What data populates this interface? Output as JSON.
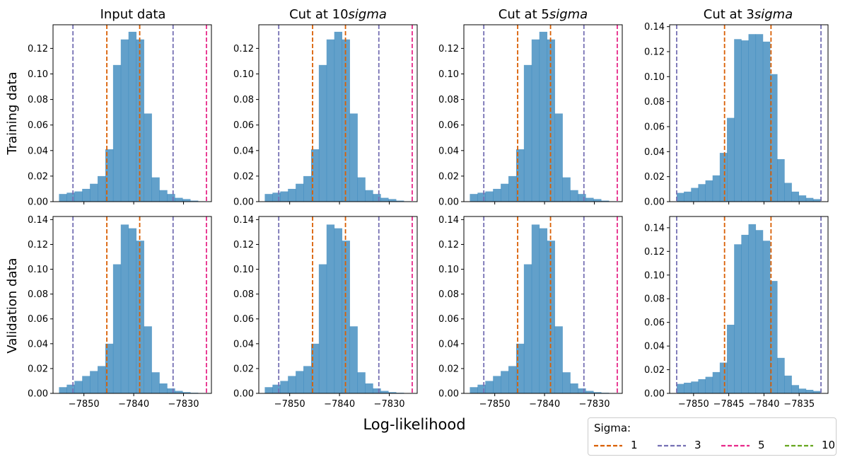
{
  "figure": {
    "xlabel": "Log-likelihood",
    "row_labels": [
      "Training data",
      "Validation data"
    ],
    "col_titles": [
      {
        "main": "Input data",
        "italic": ""
      },
      {
        "main": "Cut at 10",
        "italic": "sigma"
      },
      {
        "main": "Cut at 5",
        "italic": "sigma"
      },
      {
        "main": "Cut at 3",
        "italic": "sigma"
      }
    ]
  },
  "legend": {
    "title": "Sigma:",
    "items": [
      {
        "label": "1",
        "color": "#d95f02"
      },
      {
        "label": "3",
        "color": "#7570b3"
      },
      {
        "label": "5",
        "color": "#e7298a"
      },
      {
        "label": "10",
        "color": "#66a61e"
      }
    ]
  },
  "colors": {
    "bar": "#1f77b4",
    "bar_opacity": 0.7
  },
  "chart_data": [
    {
      "type": "bar",
      "title": "Input data",
      "ylabel": "Training data",
      "xlabel": "",
      "xlim": [
        -7856.2,
        -7824.4
      ],
      "ylim": [
        0,
        0.1385
      ],
      "xticks": [
        -7850,
        -7840,
        -7830
      ],
      "yticks": [
        0.0,
        0.02,
        0.04,
        0.06,
        0.08,
        0.1,
        0.12
      ],
      "bins_start": -7855.0,
      "bin_width": 1.55,
      "values": [
        0.006,
        0.007,
        0.008,
        0.01,
        0.014,
        0.02,
        0.041,
        0.107,
        0.127,
        0.133,
        0.127,
        0.069,
        0.019,
        0.009,
        0.006,
        0.003,
        0.002,
        0.0008,
        0.0003
      ],
      "vlines": [
        {
          "sigma": "1",
          "x": -7845.4
        },
        {
          "sigma": "1",
          "x": -7838.8
        },
        {
          "sigma": "3",
          "x": -7852.2
        },
        {
          "sigma": "3",
          "x": -7832.1
        },
        {
          "sigma": "5",
          "x": -7825.4
        }
      ]
    },
    {
      "type": "bar",
      "title": "Cut at 10sigma",
      "ylabel": "",
      "xlabel": "",
      "xlim": [
        -7856.2,
        -7824.4
      ],
      "ylim": [
        0,
        0.1385
      ],
      "xticks": [
        -7850,
        -7840,
        -7830
      ],
      "yticks": [
        0.0,
        0.02,
        0.04,
        0.06,
        0.08,
        0.1,
        0.12
      ],
      "bins_start": -7855.0,
      "bin_width": 1.55,
      "values": [
        0.006,
        0.007,
        0.008,
        0.01,
        0.014,
        0.02,
        0.041,
        0.107,
        0.127,
        0.133,
        0.127,
        0.069,
        0.019,
        0.009,
        0.006,
        0.003,
        0.002,
        0.0008,
        0.0003
      ],
      "vlines": [
        {
          "sigma": "1",
          "x": -7845.4
        },
        {
          "sigma": "1",
          "x": -7838.8
        },
        {
          "sigma": "3",
          "x": -7852.2
        },
        {
          "sigma": "3",
          "x": -7832.1
        },
        {
          "sigma": "5",
          "x": -7825.4
        }
      ]
    },
    {
      "type": "bar",
      "title": "Cut at 5sigma",
      "ylabel": "",
      "xlabel": "",
      "xlim": [
        -7856.2,
        -7824.4
      ],
      "ylim": [
        0,
        0.1385
      ],
      "xticks": [
        -7850,
        -7840,
        -7830
      ],
      "yticks": [
        0.0,
        0.02,
        0.04,
        0.06,
        0.08,
        0.1,
        0.12
      ],
      "bins_start": -7855.0,
      "bin_width": 1.55,
      "values": [
        0.006,
        0.007,
        0.008,
        0.01,
        0.014,
        0.02,
        0.041,
        0.107,
        0.127,
        0.133,
        0.127,
        0.069,
        0.019,
        0.009,
        0.006,
        0.003,
        0.002,
        0.0008,
        0.0003
      ],
      "vlines": [
        {
          "sigma": "1",
          "x": -7845.4
        },
        {
          "sigma": "1",
          "x": -7838.8
        },
        {
          "sigma": "3",
          "x": -7852.2
        },
        {
          "sigma": "3",
          "x": -7832.1
        },
        {
          "sigma": "5",
          "x": -7825.4
        }
      ]
    },
    {
      "type": "bar",
      "title": "Cut at 3sigma",
      "ylabel": "",
      "xlabel": "",
      "xlim": [
        -7853.4,
        -7830.9
      ],
      "ylim": [
        0,
        0.1415
      ],
      "xticks": [
        -7850,
        -7845,
        -7840,
        -7835
      ],
      "yticks": [
        0.0,
        0.02,
        0.04,
        0.06,
        0.08,
        0.1,
        0.12,
        0.14
      ],
      "bins_start": -7852.4,
      "bin_width": 1.02,
      "values": [
        0.007,
        0.008,
        0.011,
        0.014,
        0.017,
        0.021,
        0.039,
        0.067,
        0.13,
        0.129,
        0.134,
        0.134,
        0.128,
        0.102,
        0.034,
        0.015,
        0.008,
        0.005,
        0.003,
        0.002
      ],
      "vlines": [
        {
          "sigma": "1",
          "x": -7845.6
        },
        {
          "sigma": "1",
          "x": -7839.0
        },
        {
          "sigma": "3",
          "x": -7852.4
        },
        {
          "sigma": "3",
          "x": -7831.9
        }
      ]
    },
    {
      "type": "bar",
      "title": "",
      "ylabel": "Validation data",
      "xlabel": "",
      "xlim": [
        -7856.2,
        -7824.4
      ],
      "ylim": [
        0,
        0.1425
      ],
      "xticks": [
        -7850,
        -7840,
        -7830
      ],
      "yticks": [
        0.0,
        0.02,
        0.04,
        0.06,
        0.08,
        0.1,
        0.12,
        0.14
      ],
      "bins_start": -7855.0,
      "bin_width": 1.55,
      "values": [
        0.005,
        0.007,
        0.01,
        0.014,
        0.018,
        0.022,
        0.04,
        0.104,
        0.136,
        0.133,
        0.123,
        0.054,
        0.017,
        0.008,
        0.004,
        0.002,
        0.001,
        0.0005,
        0.0002
      ],
      "vlines": [
        {
          "sigma": "1",
          "x": -7845.4
        },
        {
          "sigma": "1",
          "x": -7838.8
        },
        {
          "sigma": "3",
          "x": -7852.2
        },
        {
          "sigma": "3",
          "x": -7832.1
        },
        {
          "sigma": "5",
          "x": -7825.4
        }
      ]
    },
    {
      "type": "bar",
      "title": "",
      "ylabel": "",
      "xlabel": "",
      "xlim": [
        -7856.2,
        -7824.4
      ],
      "ylim": [
        0,
        0.1425
      ],
      "xticks": [
        -7850,
        -7840,
        -7830
      ],
      "yticks": [
        0.0,
        0.02,
        0.04,
        0.06,
        0.08,
        0.1,
        0.12,
        0.14
      ],
      "bins_start": -7855.0,
      "bin_width": 1.55,
      "values": [
        0.005,
        0.007,
        0.01,
        0.014,
        0.018,
        0.022,
        0.04,
        0.104,
        0.136,
        0.133,
        0.123,
        0.054,
        0.017,
        0.008,
        0.004,
        0.002,
        0.001,
        0.0005,
        0.0002
      ],
      "vlines": [
        {
          "sigma": "1",
          "x": -7845.4
        },
        {
          "sigma": "1",
          "x": -7838.8
        },
        {
          "sigma": "3",
          "x": -7852.2
        },
        {
          "sigma": "3",
          "x": -7832.1
        },
        {
          "sigma": "5",
          "x": -7825.4
        }
      ]
    },
    {
      "type": "bar",
      "title": "",
      "ylabel": "",
      "xlabel": "",
      "xlim": [
        -7856.2,
        -7824.4
      ],
      "ylim": [
        0,
        0.1425
      ],
      "xticks": [
        -7850,
        -7840,
        -7830
      ],
      "yticks": [
        0.0,
        0.02,
        0.04,
        0.06,
        0.08,
        0.1,
        0.12,
        0.14
      ],
      "bins_start": -7855.0,
      "bin_width": 1.55,
      "values": [
        0.005,
        0.007,
        0.01,
        0.014,
        0.018,
        0.022,
        0.04,
        0.104,
        0.136,
        0.133,
        0.123,
        0.054,
        0.017,
        0.008,
        0.004,
        0.002,
        0.001,
        0.0005,
        0.0002
      ],
      "vlines": [
        {
          "sigma": "1",
          "x": -7845.4
        },
        {
          "sigma": "1",
          "x": -7838.8
        },
        {
          "sigma": "3",
          "x": -7852.2
        },
        {
          "sigma": "3",
          "x": -7832.1
        },
        {
          "sigma": "5",
          "x": -7825.4
        }
      ]
    },
    {
      "type": "bar",
      "title": "",
      "ylabel": "",
      "xlabel": "",
      "xlim": [
        -7853.4,
        -7830.9
      ],
      "ylim": [
        0,
        0.1495
      ],
      "xticks": [
        -7850,
        -7845,
        -7840,
        -7835
      ],
      "yticks": [
        0.0,
        0.02,
        0.04,
        0.06,
        0.08,
        0.1,
        0.12,
        0.14
      ],
      "bins_start": -7852.4,
      "bin_width": 1.02,
      "values": [
        0.008,
        0.009,
        0.01,
        0.012,
        0.014,
        0.018,
        0.026,
        0.058,
        0.126,
        0.134,
        0.143,
        0.138,
        0.129,
        0.095,
        0.03,
        0.015,
        0.007,
        0.004,
        0.003,
        0.002
      ],
      "vlines": [
        {
          "sigma": "1",
          "x": -7845.6
        },
        {
          "sigma": "1",
          "x": -7839.0
        },
        {
          "sigma": "3",
          "x": -7852.4
        },
        {
          "sigma": "3",
          "x": -7831.9
        }
      ]
    }
  ]
}
